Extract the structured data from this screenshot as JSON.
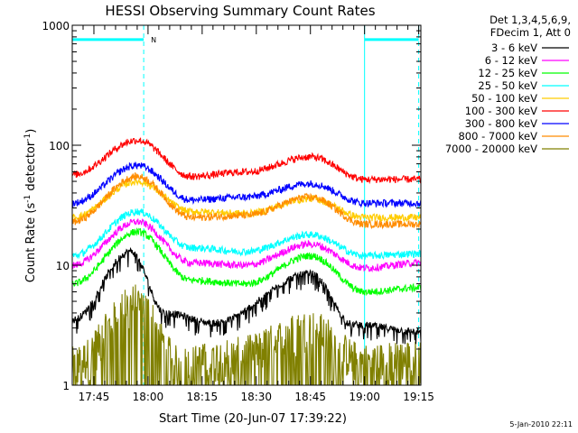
{
  "chart_data": {
    "type": "line",
    "title": "HESSI Observing Summary Count Rates",
    "xlabel": "Start Time (20-Jun-07 17:39:22)",
    "ylabel_main": "Count Rate (s",
    "ylabel_sup1": "-1",
    "ylabel_mid": " detector",
    "ylabel_sup2": "-1",
    "ylabel_end": ")",
    "ylog": true,
    "ylim": [
      1,
      1000
    ],
    "xlim_min": [
      17.65,
      19.26
    ],
    "x_ticks": [
      "17:45",
      "18:00",
      "18:15",
      "18:30",
      "18:45",
      "19:00",
      "19:15"
    ],
    "x_tick_values_min": [
      17.75,
      18.0,
      18.25,
      18.5,
      18.75,
      19.0,
      19.25
    ],
    "y_ticks": [
      "1",
      "10",
      "100",
      "1000"
    ],
    "y_tick_values": [
      1,
      10,
      100,
      1000
    ],
    "legend_header": [
      "Det 1,3,4,5,6,9,",
      "FDecim 1, Att 0"
    ],
    "series": [
      {
        "name": "3 - 6 keV",
        "color": "#000000",
        "key": [
          17.65,
          3.5,
          17.92,
          13,
          18.08,
          4,
          18.3,
          3.3,
          18.75,
          8.5,
          18.95,
          3.2,
          19.26,
          2.8
        ]
      },
      {
        "name": "6 - 12 keV",
        "color": "#ff00ff",
        "key": [
          17.65,
          10,
          17.95,
          23,
          18.2,
          10.5,
          18.45,
          10,
          18.75,
          15,
          19.0,
          9.5,
          19.26,
          10.5
        ]
      },
      {
        "name": "12 - 25 keV",
        "color": "#00ff00",
        "key": [
          17.65,
          7,
          17.95,
          19,
          18.2,
          7.5,
          18.45,
          7,
          18.75,
          12,
          19.0,
          6,
          19.26,
          6.5
        ]
      },
      {
        "name": "25 - 50 keV",
        "color": "#00ffff",
        "key": [
          17.65,
          12,
          17.95,
          28,
          18.2,
          14,
          18.45,
          13,
          18.75,
          18,
          19.0,
          12,
          19.26,
          12.5
        ]
      },
      {
        "name": "50 - 100 keV",
        "color": "#ffcc00",
        "key": [
          17.65,
          25,
          17.95,
          50,
          18.2,
          28,
          18.45,
          27,
          18.75,
          36,
          19.0,
          25,
          19.26,
          25
        ]
      },
      {
        "name": "100 - 300 keV",
        "color": "#ff0000",
        "key": [
          17.65,
          57,
          17.95,
          110,
          18.2,
          55,
          18.45,
          60,
          18.75,
          80,
          19.0,
          52,
          19.26,
          52
        ]
      },
      {
        "name": "300 - 800 keV",
        "color": "#0000ff",
        "key": [
          17.65,
          33,
          17.95,
          68,
          18.2,
          35,
          18.45,
          37,
          18.75,
          48,
          19.0,
          33,
          19.26,
          33
        ]
      },
      {
        "name": "800 - 7000 keV",
        "color": "#ff8c00",
        "key": [
          17.65,
          23,
          17.95,
          55,
          18.2,
          25,
          18.45,
          26,
          18.75,
          37,
          19.0,
          22,
          19.26,
          22
        ]
      },
      {
        "name": "7000 - 20000 keV",
        "color": "#808000",
        "key": [
          17.65,
          1.5,
          17.95,
          5,
          18.15,
          1.5,
          18.4,
          1.8,
          18.75,
          3,
          19.0,
          1.6,
          19.26,
          1.7
        ]
      }
    ],
    "saa_flags": {
      "color": "#00ffff",
      "label": "N",
      "level": 760,
      "intervals_min": [
        [
          17.65,
          17.98
        ],
        [
          19.0,
          19.25
        ]
      ]
    },
    "grid": false,
    "legend_placement": "right"
  },
  "footer": {
    "date_stamp": "5-Jan-2010 22:11"
  }
}
